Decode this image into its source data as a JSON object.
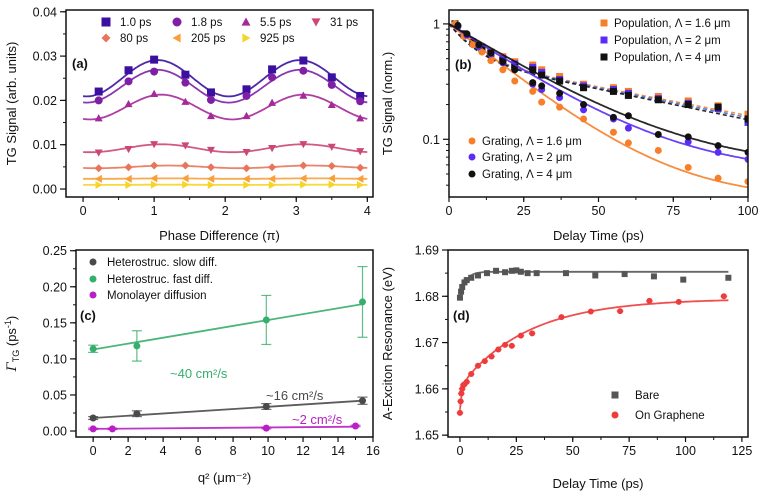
{
  "chart_data": [
    {
      "panel_label": "(a)",
      "type": "scatter",
      "xlabel": "Phase Difference (π)",
      "ylabel": "TG Signal (arb. units)",
      "xlim": [
        -0.24,
        4.08
      ],
      "ylim": [
        -0.0018,
        0.0404
      ],
      "yscale": "linear",
      "xticks": [
        0,
        1,
        2,
        3,
        4
      ],
      "xtick_labels": [
        "0",
        "1",
        "2",
        "3",
        "4"
      ],
      "yticks": [
        0,
        0.01,
        0.02,
        0.03,
        0.04
      ],
      "ytick_labels": [
        "0.00",
        "0.01",
        "0.02",
        "0.03",
        "0.04"
      ],
      "legend_placement": "top",
      "x": [
        0.22,
        0.64,
        1.0,
        1.44,
        1.8,
        2.3,
        2.66,
        3.1,
        3.5,
        3.9
      ],
      "series": [
        {
          "name": "1.0 ps",
          "marker": "square",
          "color": "#3b0f9f",
          "values": [
            0.022,
            0.0268,
            0.0292,
            0.0258,
            0.0218,
            0.0225,
            0.027,
            0.029,
            0.0252,
            0.021
          ],
          "fit": {
            "kind": "sine",
            "mean": 0.025,
            "amp": 0.0041,
            "phase": 1.05
          }
        },
        {
          "name": "1.8 ps",
          "marker": "circle",
          "color": "#7e1fa5",
          "values": [
            0.02,
            0.0243,
            0.0265,
            0.024,
            0.0201,
            0.021,
            0.0252,
            0.0267,
            0.0235,
            0.0198
          ],
          "fit": {
            "kind": "sine",
            "mean": 0.0232,
            "amp": 0.0037,
            "phase": 1.05
          }
        },
        {
          "name": "5.5 ps",
          "marker": "triangle-up",
          "color": "#a42a9a",
          "values": [
            0.016,
            0.0192,
            0.0215,
            0.0197,
            0.0165,
            0.0165,
            0.0195,
            0.0211,
            0.019,
            0.016
          ],
          "fit": {
            "kind": "sine",
            "mean": 0.0185,
            "amp": 0.0028,
            "phase": 1.1
          }
        },
        {
          "name": "31 ps",
          "marker": "triangle-down",
          "color": "#cc4778",
          "values": [
            0.0082,
            0.009,
            0.0101,
            0.0098,
            0.0088,
            0.0083,
            0.0092,
            0.0101,
            0.0095,
            0.0085
          ],
          "fit": {
            "kind": "sine",
            "mean": 0.0092,
            "amp": 0.0009,
            "phase": 1.1
          }
        },
        {
          "name": "80 ps",
          "marker": "diamond",
          "color": "#e8745c",
          "values": [
            0.0047,
            0.0049,
            0.0053,
            0.0053,
            0.0049,
            0.0047,
            0.0049,
            0.0053,
            0.0052,
            0.0048
          ],
          "fit": {
            "kind": "sine",
            "mean": 0.005,
            "amp": 0.0003,
            "phase": 1.2
          }
        },
        {
          "name": "205 ps",
          "marker": "triangle-left",
          "color": "#f8a03c",
          "values": [
            0.0023,
            0.0023,
            0.0024,
            0.0024,
            0.0023,
            0.0023,
            0.0023,
            0.0024,
            0.0024,
            0.0023
          ],
          "fit": {
            "kind": "sine",
            "mean": 0.00235,
            "amp": 5e-05,
            "phase": 1.2
          }
        },
        {
          "name": "925 ps",
          "marker": "triangle-right",
          "color": "#f6d52a",
          "values": [
            0.0009,
            0.0009,
            0.001,
            0.001,
            0.0009,
            0.0009,
            0.0009,
            0.001,
            0.001,
            0.0009
          ],
          "fit": {
            "kind": "sine",
            "mean": 0.00095,
            "amp": 3e-05,
            "phase": 1.2
          }
        }
      ]
    },
    {
      "panel_label": "(b)",
      "type": "scatter",
      "xlabel": "Delay Time (ps)",
      "ylabel": "TG Signal (norm.)",
      "xlim": [
        0,
        100
      ],
      "ylim": [
        0.0316,
        1.32
      ],
      "yscale": "log",
      "xticks": [
        0,
        25,
        50,
        75,
        100
      ],
      "xtick_labels": [
        "0",
        "25",
        "50",
        "75",
        "100"
      ],
      "yticks": [
        0.1,
        1
      ],
      "ytick_labels": [
        "0.1",
        "1"
      ],
      "legend_placement": "top-right and bottom-left",
      "series": [
        {
          "name": "Population, Λ = 1.6 μm",
          "marker": "square",
          "color": "#f77f2a",
          "x": [
            2,
            5,
            8,
            11,
            14,
            18,
            22,
            28,
            31,
            37,
            45,
            55,
            60,
            70,
            80,
            90,
            100
          ],
          "values": [
            1,
            0.82,
            0.7,
            0.63,
            0.57,
            0.52,
            0.47,
            0.44,
            0.4,
            0.35,
            0.3,
            0.28,
            0.26,
            0.235,
            0.215,
            0.195,
            0.165
          ],
          "fit": {
            "kind": "biexp",
            "a1": 0.5,
            "t1": 8,
            "a2": 0.5,
            "t2": 88,
            "dash": true,
            "color": "#f77f2a"
          }
        },
        {
          "name": "Population, Λ = 2 μm",
          "marker": "square",
          "color": "#5b2cf5",
          "x": [
            2,
            5,
            8,
            11,
            14,
            18,
            22,
            28,
            31,
            37,
            45,
            55,
            60,
            70,
            80,
            90,
            100
          ],
          "values": [
            1,
            0.8,
            0.68,
            0.61,
            0.55,
            0.5,
            0.45,
            0.42,
            0.38,
            0.33,
            0.29,
            0.27,
            0.25,
            0.225,
            0.205,
            0.185,
            0.14
          ],
          "fit": {
            "kind": "biexp",
            "a1": 0.5,
            "t1": 8,
            "a2": 0.5,
            "t2": 85,
            "dash": true,
            "color": "#3a6ee8"
          }
        },
        {
          "name": "Population, Λ = 4 μm",
          "marker": "square",
          "color": "#111111",
          "x": [
            2,
            5,
            8,
            11,
            14,
            18,
            22,
            28,
            31,
            37,
            45,
            55,
            60,
            70,
            80,
            90,
            100
          ],
          "values": [
            1,
            0.82,
            0.69,
            0.62,
            0.56,
            0.48,
            0.42,
            0.4,
            0.36,
            0.32,
            0.28,
            0.26,
            0.24,
            0.22,
            0.2,
            0.19,
            0.15
          ],
          "fit": {
            "kind": "biexp",
            "a1": 0.5,
            "t1": 7.5,
            "a2": 0.5,
            "t2": 82,
            "dash": true,
            "color": "#111111"
          }
        },
        {
          "name": "Grating, Λ = 1.6 μm",
          "marker": "circle",
          "color": "#f77f2a",
          "x": [
            2,
            5,
            8,
            11,
            14,
            18,
            22,
            28,
            31,
            37,
            45,
            55,
            60,
            70,
            80,
            90,
            100
          ],
          "values": [
            1,
            0.78,
            0.66,
            0.57,
            0.48,
            0.4,
            0.32,
            0.26,
            0.21,
            0.19,
            0.15,
            0.115,
            0.093,
            0.08,
            0.057,
            0.046,
            0.043
          ],
          "fit": {
            "kind": "exp",
            "amp": 0.97,
            "tau": 21,
            "offset": 0.03
          }
        },
        {
          "name": "Grating, Λ = 2 μm",
          "marker": "circle",
          "color": "#5b2cf5",
          "x": [
            3,
            6,
            10,
            14,
            18,
            28,
            31,
            37,
            45,
            55,
            60,
            80,
            90,
            100
          ],
          "values": [
            0.95,
            0.8,
            0.64,
            0.55,
            0.46,
            0.3,
            0.27,
            0.23,
            0.18,
            0.15,
            0.125,
            0.095,
            0.077,
            0.067
          ],
          "fit": {
            "kind": "exp",
            "amp": 0.95,
            "tau": 25,
            "offset": 0.05
          }
        },
        {
          "name": "Grating, Λ = 4 μm",
          "marker": "circle",
          "color": "#111111",
          "x": [
            3,
            6,
            10,
            14,
            18,
            22,
            28,
            31,
            37,
            45,
            55,
            60,
            70,
            80,
            90,
            100
          ],
          "values": [
            0.97,
            0.82,
            0.66,
            0.56,
            0.47,
            0.4,
            0.31,
            0.29,
            0.25,
            0.2,
            0.155,
            0.16,
            0.11,
            0.105,
            0.088,
            0.077
          ],
          "fit": {
            "kind": "exp",
            "amp": 0.945,
            "tau": 27,
            "offset": 0.055
          }
        }
      ]
    },
    {
      "panel_label": "(c)",
      "type": "scatter",
      "xlabel": "q² (μm⁻²)",
      "ylabel_parts": {
        "symbol": "Γ",
        "sub": "TG",
        "unit": " (ps",
        "sup": "-1",
        "close": ")"
      },
      "xlim": [
        -0.98,
        16
      ],
      "ylim": [
        -0.0083,
        0.251
      ],
      "yscale": "linear",
      "xticks": [
        0,
        2,
        4,
        6,
        8,
        10,
        12,
        14,
        16
      ],
      "xtick_labels": [
        "0",
        "2",
        "4",
        "6",
        "8",
        "10",
        "12",
        "14",
        "16"
      ],
      "yticks": [
        0,
        0.05,
        0.1,
        0.15,
        0.2,
        0.25
      ],
      "ytick_labels": [
        "0.00",
        "0.05",
        "0.10",
        "0.15",
        "0.20",
        "0.25"
      ],
      "legend_placement": "top-left",
      "series": [
        {
          "name": "Heterostruc. slow diff.",
          "marker": "circle",
          "color": "#4a4a4a",
          "x": [
            0,
            2.5,
            9.9,
            15.4
          ],
          "values": [
            0.018,
            0.024,
            0.034,
            0.042
          ],
          "yerr": [
            0.002,
            0.004,
            0.004,
            0.005
          ],
          "fit": {
            "kind": "linear",
            "x": [
              0,
              15.4
            ],
            "y": [
              0.018,
              0.042
            ]
          },
          "annotation": "~16 cm²/s"
        },
        {
          "name": "Heterostruc. fast diff.",
          "marker": "circle",
          "color": "#36ae6c",
          "x": [
            0,
            2.5,
            9.9,
            15.4
          ],
          "values": [
            0.114,
            0.118,
            0.154,
            0.179
          ],
          "yerr": [
            0.005,
            0.021,
            0.034,
            0.049
          ],
          "fit": {
            "kind": "linear",
            "x": [
              0,
              15.4
            ],
            "y": [
              0.113,
              0.176
            ]
          },
          "annotation": "~40 cm²/s"
        },
        {
          "name": "Monolayer diffusion",
          "marker": "circle",
          "color": "#b81fc6",
          "x": [
            0,
            1.1,
            9.9,
            15
          ],
          "values": [
            0.003,
            0.003,
            0.004,
            0.007
          ],
          "yerr": [
            0.001,
            0.001,
            0.001,
            0.001
          ],
          "fit": {
            "kind": "linear",
            "x": [
              0,
              15
            ],
            "y": [
              0.003,
              0.006
            ]
          },
          "annotation": "~2 cm²/s"
        }
      ]
    },
    {
      "panel_label": "(d)",
      "type": "scatter",
      "xlabel": "Delay Time (ps)",
      "ylabel": "A-Exciton Resonance (eV)",
      "xlim": [
        -5.3,
        127.7
      ],
      "ylim": [
        1.6496,
        1.69
      ],
      "yscale": "linear",
      "xticks": [
        0,
        25,
        50,
        75,
        100,
        125
      ],
      "xtick_labels": [
        "0",
        "25",
        "50",
        "75",
        "100",
        "125"
      ],
      "yticks": [
        1.65,
        1.66,
        1.67,
        1.68,
        1.69
      ],
      "ytick_labels": [
        "1.65",
        "1.66",
        "1.67",
        "1.68",
        "1.69"
      ],
      "legend_placement": "bottom-right",
      "series": [
        {
          "name": "Bare",
          "marker": "square",
          "color": "#555555",
          "x": [
            0,
            0.5,
            1,
            2,
            3,
            5,
            8,
            12,
            16,
            20,
            23,
            25,
            27,
            30,
            34,
            47,
            60,
            73,
            86,
            99,
            119
          ],
          "values": [
            1.6797,
            1.681,
            1.682,
            1.683,
            1.6835,
            1.684,
            1.6845,
            1.685,
            1.6855,
            1.6852,
            1.6855,
            1.6856,
            1.6853,
            1.685,
            1.685,
            1.685,
            1.6845,
            1.6848,
            1.6843,
            1.6836,
            1.684
          ],
          "xerr": 1.2,
          "fit": {
            "kind": "rise",
            "plateau": 1.6853,
            "amp": 0.0058,
            "tau": 2.5,
            "amp2": 0,
            "tau2": 1,
            "xmax": 119
          }
        },
        {
          "name": "On Graphene",
          "marker": "circle",
          "color": "#ee3b3b",
          "x": [
            0,
            0.3,
            0.6,
            1,
            1.5,
            2,
            3,
            5,
            8,
            11,
            14,
            17,
            20,
            23,
            27,
            32,
            45,
            58,
            71,
            84,
            97,
            117
          ],
          "values": [
            1.6548,
            1.6573,
            1.659,
            1.66,
            1.6608,
            1.661,
            1.6615,
            1.6632,
            1.665,
            1.666,
            1.667,
            1.6685,
            1.6695,
            1.6693,
            1.6715,
            1.672,
            1.6755,
            1.6767,
            1.6768,
            1.679,
            1.6788,
            1.68
          ],
          "xerr": 1.5,
          "fit": {
            "kind": "rise",
            "plateau": 1.6795,
            "amp": 0.005,
            "tau": 1,
            "amp2": 0.019,
            "tau2": 30,
            "xmax": 119
          }
        }
      ]
    }
  ]
}
